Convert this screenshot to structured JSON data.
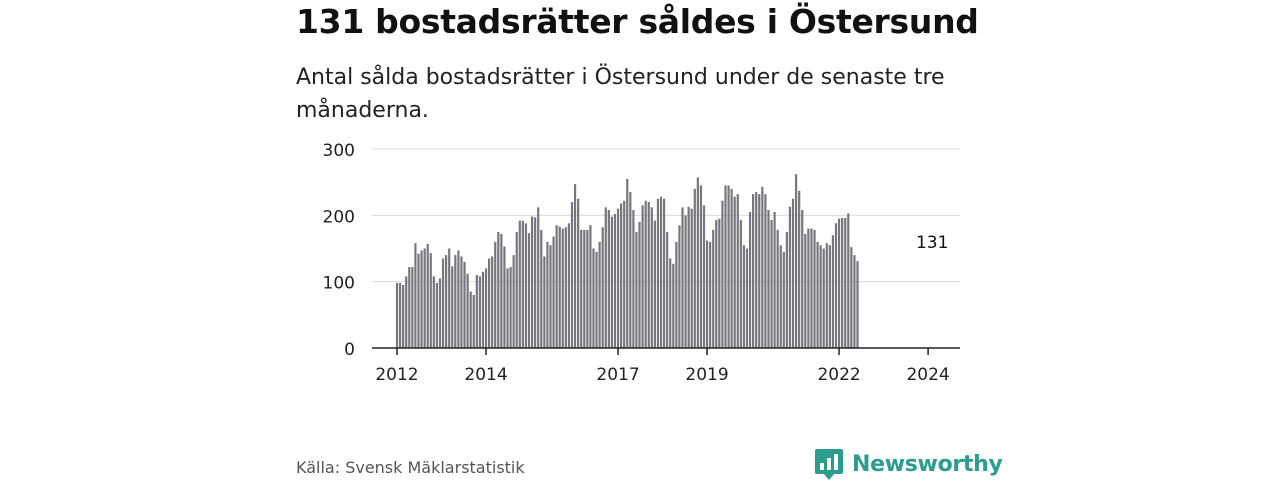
{
  "header": {
    "title": "131 bostadsrätter såldes i Östersund",
    "subtitle": "Antal sålda bostadsrätter i Östersund under de senaste tre månaderna."
  },
  "footer": {
    "source": "Källa: Svensk Mäklarstatistik",
    "brand": "Newsworthy"
  },
  "colors": {
    "bar": "#76767c",
    "highlight": "#2a9d8f",
    "grid": "#d9d9d9",
    "axis": "#222222"
  },
  "chart_data": {
    "type": "bar",
    "title": "131 bostadsrätter såldes i Östersund",
    "xlabel": "",
    "ylabel": "",
    "ylim": [
      0,
      300
    ],
    "yticks": [
      0,
      100,
      200,
      300
    ],
    "xticks": [
      {
        "index": 0,
        "label": "2012"
      },
      {
        "index": 29,
        "label": "2014"
      },
      {
        "index": 72,
        "label": "2017"
      },
      {
        "index": 101,
        "label": "2019"
      },
      {
        "index": 144,
        "label": "2022"
      },
      {
        "index": 173,
        "label": "2024"
      }
    ],
    "highlight": {
      "index": 174,
      "value": 131,
      "label": "131"
    },
    "values": [
      98,
      98,
      95,
      108,
      122,
      122,
      158,
      142,
      147,
      150,
      157,
      143,
      108,
      98,
      105,
      135,
      140,
      150,
      123,
      140,
      147,
      138,
      130,
      112,
      85,
      80,
      110,
      108,
      115,
      120,
      135,
      138,
      160,
      175,
      172,
      153,
      120,
      122,
      140,
      175,
      192,
      192,
      188,
      173,
      198,
      197,
      212,
      178,
      138,
      160,
      155,
      168,
      185,
      183,
      180,
      182,
      188,
      220,
      247,
      225,
      178,
      178,
      178,
      185,
      150,
      145,
      160,
      182,
      212,
      208,
      198,
      202,
      210,
      218,
      222,
      255,
      235,
      208,
      175,
      190,
      215,
      222,
      220,
      212,
      192,
      225,
      228,
      225,
      175,
      135,
      127,
      160,
      185,
      212,
      200,
      213,
      210,
      240,
      257,
      245,
      215,
      162,
      160,
      178,
      193,
      195,
      222,
      245,
      245,
      240,
      228,
      232,
      193,
      155,
      150,
      205,
      232,
      235,
      232,
      243,
      232,
      208,
      193,
      205,
      178,
      155,
      145,
      175,
      213,
      225,
      262,
      237,
      208,
      172,
      180,
      180,
      178,
      160,
      155,
      150,
      158,
      155,
      170,
      188,
      195,
      196,
      196,
      203,
      152,
      140,
      131
    ]
  }
}
